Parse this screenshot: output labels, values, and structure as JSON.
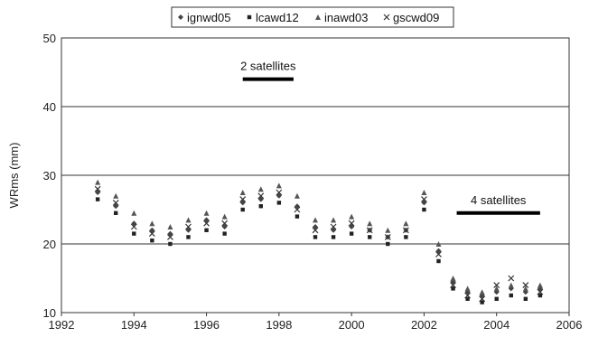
{
  "chart_data": {
    "type": "scatter",
    "title": "",
    "xlabel": "",
    "ylabel": "WRms (mm)",
    "xlim": [
      1992,
      2006
    ],
    "ylim": [
      10,
      50
    ],
    "x_ticks": [
      "1992",
      "1994",
      "1996",
      "1998",
      "2000",
      "2002",
      "2004",
      "2006"
    ],
    "y_ticks": [
      "10",
      "20",
      "30",
      "40",
      "50"
    ],
    "grid": "horizontal",
    "legend_position": "top",
    "series": [
      {
        "name": "ignwd05",
        "marker": "diamond",
        "color": "#444444",
        "x": [
          1993.0,
          1993.5,
          1994.0,
          1994.5,
          1995.0,
          1995.5,
          1996.0,
          1996.5,
          1997.0,
          1997.5,
          1998.0,
          1998.5,
          1999.0,
          1999.5,
          2000.0,
          2000.5,
          2001.0,
          2001.5,
          2002.0,
          2002.4,
          2002.8,
          2003.2,
          2003.6,
          2004.0,
          2004.4,
          2004.8,
          2005.2
        ],
        "y": [
          27.5,
          25.5,
          23.0,
          22.0,
          21.5,
          22.0,
          23.5,
          22.5,
          26.0,
          26.5,
          27.0,
          25.5,
          22.5,
          22.0,
          22.5,
          22.0,
          21.0,
          22.0,
          26.0,
          19.0,
          14.5,
          13.0,
          12.5,
          13.0,
          13.5,
          13.0,
          13.5
        ]
      },
      {
        "name": "lcawd12",
        "marker": "square",
        "color": "#222222",
        "x": [
          1993.0,
          1993.5,
          1994.0,
          1994.5,
          1995.0,
          1995.5,
          1996.0,
          1996.5,
          1997.0,
          1997.5,
          1998.0,
          1998.5,
          1999.0,
          1999.5,
          2000.0,
          2000.5,
          2001.0,
          2001.5,
          2002.0,
          2002.4,
          2002.8,
          2003.2,
          2003.6,
          2004.0,
          2004.4,
          2004.8,
          2005.2
        ],
        "y": [
          26.5,
          24.5,
          21.5,
          20.5,
          20.0,
          21.0,
          22.0,
          21.5,
          25.0,
          25.5,
          26.0,
          24.0,
          21.0,
          21.0,
          21.5,
          21.0,
          20.0,
          21.0,
          25.0,
          17.5,
          13.5,
          12.0,
          11.5,
          12.0,
          12.5,
          12.0,
          12.5
        ]
      },
      {
        "name": "inawd03",
        "marker": "triangle",
        "color": "#555555",
        "x": [
          1993.0,
          1993.5,
          1994.0,
          1994.5,
          1995.0,
          1995.5,
          1996.0,
          1996.5,
          1997.0,
          1997.5,
          1998.0,
          1998.5,
          1999.0,
          1999.5,
          2000.0,
          2000.5,
          2001.0,
          2001.5,
          2002.0,
          2002.4,
          2002.8,
          2003.2,
          2003.6,
          2004.0,
          2004.4,
          2004.8,
          2005.2
        ],
        "y": [
          29.0,
          27.0,
          24.5,
          23.0,
          22.5,
          23.5,
          24.5,
          24.0,
          27.5,
          28.0,
          28.5,
          27.0,
          23.5,
          23.5,
          24.0,
          23.0,
          22.0,
          23.0,
          27.5,
          20.0,
          15.0,
          13.5,
          13.0,
          13.5,
          14.0,
          13.5,
          14.0
        ]
      },
      {
        "name": "gscwd09",
        "marker": "cross",
        "color": "#333333",
        "x": [
          1993.0,
          1993.5,
          1994.0,
          1994.5,
          1995.0,
          1995.5,
          1996.0,
          1996.5,
          1997.0,
          1997.5,
          1998.0,
          1998.5,
          1999.0,
          1999.5,
          2000.0,
          2000.5,
          2001.0,
          2001.5,
          2002.0,
          2002.4,
          2002.8,
          2003.2,
          2003.6,
          2004.0,
          2004.4,
          2004.8,
          2005.2
        ],
        "y": [
          28.0,
          26.0,
          22.5,
          21.5,
          21.0,
          22.5,
          23.0,
          23.0,
          26.5,
          27.0,
          27.5,
          25.0,
          22.0,
          22.5,
          23.0,
          22.0,
          21.0,
          22.0,
          26.5,
          18.5,
          14.0,
          12.5,
          12.0,
          14.0,
          15.0,
          14.0,
          13.0
        ]
      }
    ],
    "annotations": [
      {
        "text": "2 satellites",
        "x_start": 1997.0,
        "x_end": 1998.4,
        "y": 44
      },
      {
        "text": "4 satellites",
        "x_start": 2002.9,
        "x_end": 2005.2,
        "y": 24.5
      }
    ]
  }
}
